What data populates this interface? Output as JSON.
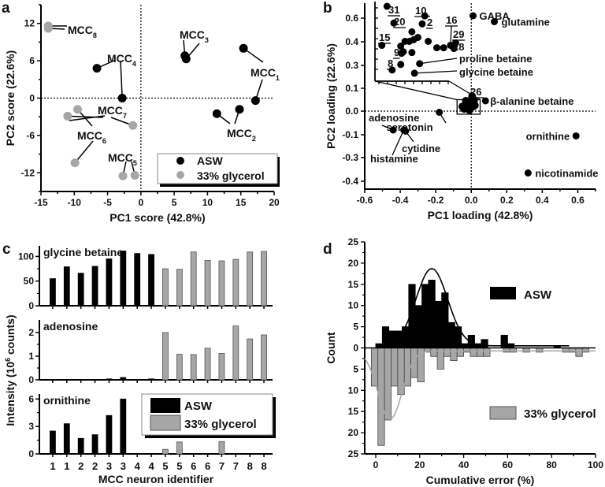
{
  "chart_data": [
    {
      "panel": "a",
      "type": "scatter",
      "title": "",
      "xlabel": "PC1 score (42.8%)",
      "ylabel": "PC2 score (22.6%)",
      "xlim": [
        -15,
        20
      ],
      "ylim": [
        -15,
        15
      ],
      "xticks": [
        -15,
        -10,
        -5,
        0,
        5,
        10,
        15,
        20
      ],
      "yticks": [
        -12,
        -6,
        0,
        6,
        12
      ],
      "legend": {
        "position": "bottom-right",
        "entries": [
          "ASW",
          "33% glycerol"
        ]
      },
      "colors": {
        "ASW": "#000000",
        "33% glycerol": "#a6a6a6"
      },
      "points": [
        {
          "group": "ASW",
          "label": "MCC1",
          "x": 15.4,
          "y": 8.0
        },
        {
          "group": "ASW",
          "label": "MCC1",
          "x": 17.2,
          "y": -0.4
        },
        {
          "group": "ASW",
          "label": "MCC2",
          "x": 11.4,
          "y": -2.5
        },
        {
          "group": "ASW",
          "label": "MCC2",
          "x": 14.8,
          "y": -1.8
        },
        {
          "group": "ASW",
          "label": "MCC3",
          "x": 6.6,
          "y": 6.8
        },
        {
          "group": "ASW",
          "label": "MCC3",
          "x": 6.8,
          "y": 6.3
        },
        {
          "group": "ASW",
          "label": "MCC4",
          "x": -6.6,
          "y": 4.8
        },
        {
          "group": "ASW",
          "label": "MCC4",
          "x": -2.8,
          "y": 0.0
        },
        {
          "group": "33% glycerol",
          "label": "MCC5",
          "x": -2.7,
          "y": -12.5
        },
        {
          "group": "33% glycerol",
          "label": "MCC5",
          "x": -0.9,
          "y": -12.4
        },
        {
          "group": "33% glycerol",
          "label": "MCC6",
          "x": -9.5,
          "y": -1.8
        },
        {
          "group": "33% glycerol",
          "label": "MCC6",
          "x": -9.9,
          "y": -10.4
        },
        {
          "group": "33% glycerol",
          "label": "MCC7",
          "x": -11.0,
          "y": -2.9
        },
        {
          "group": "33% glycerol",
          "label": "MCC7",
          "x": -1.2,
          "y": -4.4
        },
        {
          "group": "33% glycerol",
          "label": "MCC8",
          "x": -13.9,
          "y": 11.6
        },
        {
          "group": "33% glycerol",
          "label": "MCC8",
          "x": -13.9,
          "y": 11.2
        }
      ],
      "annotations": [
        {
          "text": "MCC",
          "sub": "1"
        },
        {
          "text": "MCC",
          "sub": "2"
        },
        {
          "text": "MCC",
          "sub": "3"
        },
        {
          "text": "MCC",
          "sub": "4"
        },
        {
          "text": "MCC",
          "sub": "5"
        },
        {
          "text": "MCC",
          "sub": "6"
        },
        {
          "text": "MCC",
          "sub": "7"
        },
        {
          "text": "MCC",
          "sub": "8"
        }
      ]
    },
    {
      "panel": "b",
      "type": "scatter",
      "xlabel": "PC1 loading (42.8%)",
      "ylabel": "PC2 loading (22.6%)",
      "xlim": [
        -0.6,
        0.7
      ],
      "xticks": [
        -0.6,
        -0.4,
        -0.2,
        0.0,
        0.2,
        0.4,
        0.6
      ],
      "ytick_labels": [
        "0.6",
        "0.4",
        "0.3",
        "0.1",
        "0.0",
        "-0.1",
        "-0.3",
        "-0.4"
      ],
      "ylim_display": [
        -0.45,
        0.65
      ],
      "points": [
        {
          "label": "GABA",
          "x": 0.01,
          "y": 0.62
        },
        {
          "label": "glutamine",
          "x": 0.13,
          "y": 0.57
        },
        {
          "label": "β-alanine betaine",
          "x": 0.08,
          "y": 0.045
        },
        {
          "label": "serotonin",
          "x": -0.18,
          "y": -0.005
        },
        {
          "label": "adenosine",
          "x": -0.44,
          "y": -0.08
        },
        {
          "label": "histamine",
          "x": -0.38,
          "y": -0.08
        },
        {
          "label": "cytidine",
          "x": -0.37,
          "y": -0.085
        },
        {
          "label": "ornithine",
          "x": 0.59,
          "y": -0.11
        },
        {
          "label": "nicotinamide",
          "x": 0.32,
          "y": -0.365
        },
        {
          "label": "26",
          "x": 0.005,
          "y": 0.065
        }
      ],
      "inset": {
        "description": "zoom of boxed region near origin",
        "points": [
          {
            "label": "31",
            "x": 0.14,
            "y": 0.94
          },
          {
            "label": "20",
            "x": 0.22,
            "y": 0.73
          },
          {
            "label": "10",
            "x": 0.58,
            "y": 0.82
          },
          {
            "label": "",
            "x": 0.43,
            "y": 0.62
          },
          {
            "label": "2",
            "x": 0.55,
            "y": 0.72
          },
          {
            "label": "",
            "x": 0.5,
            "y": 0.55
          },
          {
            "label": "15",
            "x": 0.08,
            "y": 0.45
          },
          {
            "label": "",
            "x": 0.35,
            "y": 0.5
          },
          {
            "label": "",
            "x": 0.4,
            "y": 0.5
          },
          {
            "label": "",
            "x": 0.45,
            "y": 0.52
          },
          {
            "label": "",
            "x": 0.62,
            "y": 0.5
          },
          {
            "label": "",
            "x": 0.3,
            "y": 0.44
          },
          {
            "label": "",
            "x": 0.31,
            "y": 0.35
          },
          {
            "label": "",
            "x": 0.33,
            "y": 0.37
          },
          {
            "label": "",
            "x": 0.43,
            "y": 0.36
          },
          {
            "label": "9",
            "x": 0.3,
            "y": 0.21
          },
          {
            "label": "8",
            "x": 0.2,
            "y": 0.14
          },
          {
            "label": "16",
            "x": 0.88,
            "y": 0.45
          },
          {
            "label": "",
            "x": 0.8,
            "y": 0.42
          },
          {
            "label": "29",
            "x": 0.94,
            "y": 0.48
          },
          {
            "label": "28",
            "x": 0.92,
            "y": 0.41
          },
          {
            "label": "",
            "x": 0.72,
            "y": 0.42
          },
          {
            "label": "proline betaine",
            "x": 0.52,
            "y": 0.22
          },
          {
            "label": "glycine betaine",
            "x": 0.46,
            "y": 0.1
          }
        ],
        "underlined_labels": [
          "31",
          "10",
          "20",
          "2",
          "15",
          "9",
          "8",
          "16",
          "29"
        ]
      }
    },
    {
      "panel": "c",
      "type": "bar",
      "xlabel": "MCC neuron identifier",
      "ylabel": "Intensity (10^6 counts)",
      "categories": [
        "1",
        "1",
        "2",
        "2",
        "3",
        "3",
        "4",
        "4",
        "5",
        "5",
        "6",
        "6",
        "7",
        "7",
        "8",
        "8"
      ],
      "groups": [
        "ASW",
        "ASW",
        "ASW",
        "ASW",
        "ASW",
        "ASW",
        "ASW",
        "ASW",
        "33% glycerol",
        "33% glycerol",
        "33% glycerol",
        "33% glycerol",
        "33% glycerol",
        "33% glycerol",
        "33% glycerol",
        "33% glycerol"
      ],
      "legend": {
        "position": "right",
        "entries": [
          "ASW",
          "33% glycerol"
        ]
      },
      "colors": {
        "ASW": "#000000",
        "33% glycerol": "#a6a6a6"
      },
      "subplots": [
        {
          "title": "glycine betaine",
          "ylim": [
            0,
            115
          ],
          "yticks": [
            0,
            50,
            100
          ],
          "values": [
            55,
            79,
            66,
            80,
            95,
            111,
            106,
            104,
            75,
            74,
            109,
            92,
            91,
            94,
            109,
            110
          ]
        },
        {
          "title": "adenosine",
          "ylim": [
            0,
            2.4
          ],
          "yticks": [
            0,
            1,
            2
          ],
          "values": [
            0,
            0,
            0,
            0,
            0.04,
            0.1,
            0.02,
            0.04,
            2.0,
            1.08,
            1.07,
            1.34,
            1.12,
            2.28,
            1.73,
            1.9
          ]
        },
        {
          "title": "ornithine",
          "ylim": [
            0,
            6.2
          ],
          "yticks": [
            0,
            3,
            6
          ],
          "values": [
            2.5,
            3.3,
            1.7,
            2.1,
            4.2,
            6.0,
            0,
            0,
            0.5,
            1.3,
            0,
            0,
            1.35,
            0,
            0,
            0
          ]
        }
      ]
    },
    {
      "panel": "d",
      "type": "bar",
      "xlabel": "Cumulative error (%)",
      "ylabel": "Count",
      "xlim": [
        -5,
        100
      ],
      "xticks": [
        0,
        20,
        40,
        60,
        80,
        100
      ],
      "ylim": [
        -25,
        25
      ],
      "yticks_labels": [
        "25",
        "20",
        "15",
        "10",
        "5",
        "0",
        "5",
        "10",
        "15",
        "20",
        "25"
      ],
      "bin_width": 3,
      "legend": {
        "entries": [
          "ASW",
          "33% glycerol"
        ]
      },
      "colors": {
        "ASW": "#000000",
        "33% glycerol": "#a6a6a6"
      },
      "series": [
        {
          "name": "ASW",
          "direction": "up",
          "x": [
            1.5,
            4.5,
            7.5,
            10.5,
            13.5,
            16.5,
            19.5,
            22.5,
            25.5,
            28.5,
            31.5,
            34.5,
            37.5,
            40.5,
            43.5,
            46.5,
            49.5,
            58.5,
            61.5,
            82.5
          ],
          "values": [
            1,
            5,
            4,
            4,
            5,
            15,
            10,
            15,
            16,
            11,
            13,
            6,
            5,
            1,
            3,
            1,
            2,
            3,
            1,
            0.5
          ],
          "fit": {
            "type": "gaussian",
            "center": 25.5,
            "peak": 18.7,
            "sigma": 7.2,
            "baseline": 0.5
          }
        },
        {
          "name": "33% glycerol",
          "direction": "down",
          "x": [
            -0.5,
            2.5,
            5.5,
            8.5,
            11.5,
            14.5,
            17.5,
            20.5,
            23.5,
            26.5,
            29.5,
            32.5,
            35.5,
            38.5,
            41.5,
            44.5,
            47.5,
            50.5,
            59.5,
            62.5,
            68.5,
            74.5,
            86.5,
            89.5,
            92.5,
            95.5
          ],
          "values": [
            9,
            23,
            17,
            9,
            11,
            9,
            7,
            8,
            1,
            2,
            5,
            2,
            3,
            2,
            1,
            2,
            2,
            2,
            1,
            1,
            1,
            1,
            1,
            1,
            2,
            1
          ],
          "fit": {
            "type": "gaussian",
            "center": 6.5,
            "peak": 16.8,
            "sigma": 5.5,
            "baseline": 0.7
          }
        }
      ]
    }
  ],
  "panel_labels": {
    "a": "a",
    "b": "b",
    "c": "c",
    "d": "d"
  }
}
